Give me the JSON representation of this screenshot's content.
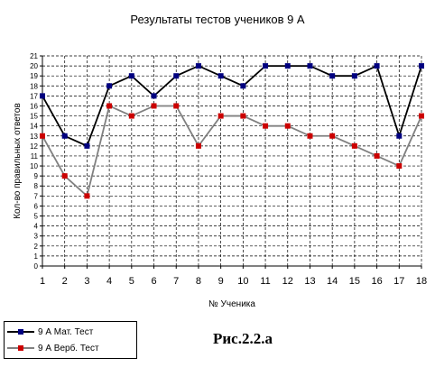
{
  "chart_data": {
    "type": "line",
    "title": "Результаты тестов учеников 9 А",
    "xlabel": "№ Ученика",
    "ylabel": "Кол-во правильных ответов",
    "categories": [
      "1",
      "2",
      "3",
      "4",
      "5",
      "6",
      "7",
      "8",
      "9",
      "10",
      "11",
      "12",
      "13",
      "14",
      "15",
      "16",
      "17",
      "18"
    ],
    "ylim": [
      0,
      21
    ],
    "yticks": [
      "0",
      "1",
      "2",
      "3",
      "4",
      "5",
      "6",
      "7",
      "8",
      "9",
      "10",
      "11",
      "12",
      "13",
      "14",
      "15",
      "16",
      "17",
      "18",
      "19",
      "20",
      "21"
    ],
    "grid": true,
    "legend_position": "bottom-left",
    "series": [
      {
        "name": "9 А Мат. Тест",
        "color": "#000000",
        "marker_color": "#000080",
        "values": [
          17,
          13,
          12,
          18,
          19,
          17,
          19,
          20,
          19,
          18,
          20,
          20,
          20,
          19,
          19,
          20,
          13,
          20
        ]
      },
      {
        "name": "9 А Верб. Тест",
        "color": "#808080",
        "marker_color": "#cc0000",
        "values": [
          13,
          9,
          7,
          16,
          15,
          16,
          16,
          12,
          15,
          15,
          14,
          14,
          13,
          13,
          12,
          11,
          10,
          15
        ]
      }
    ]
  },
  "caption": "Рис.2.2.а"
}
